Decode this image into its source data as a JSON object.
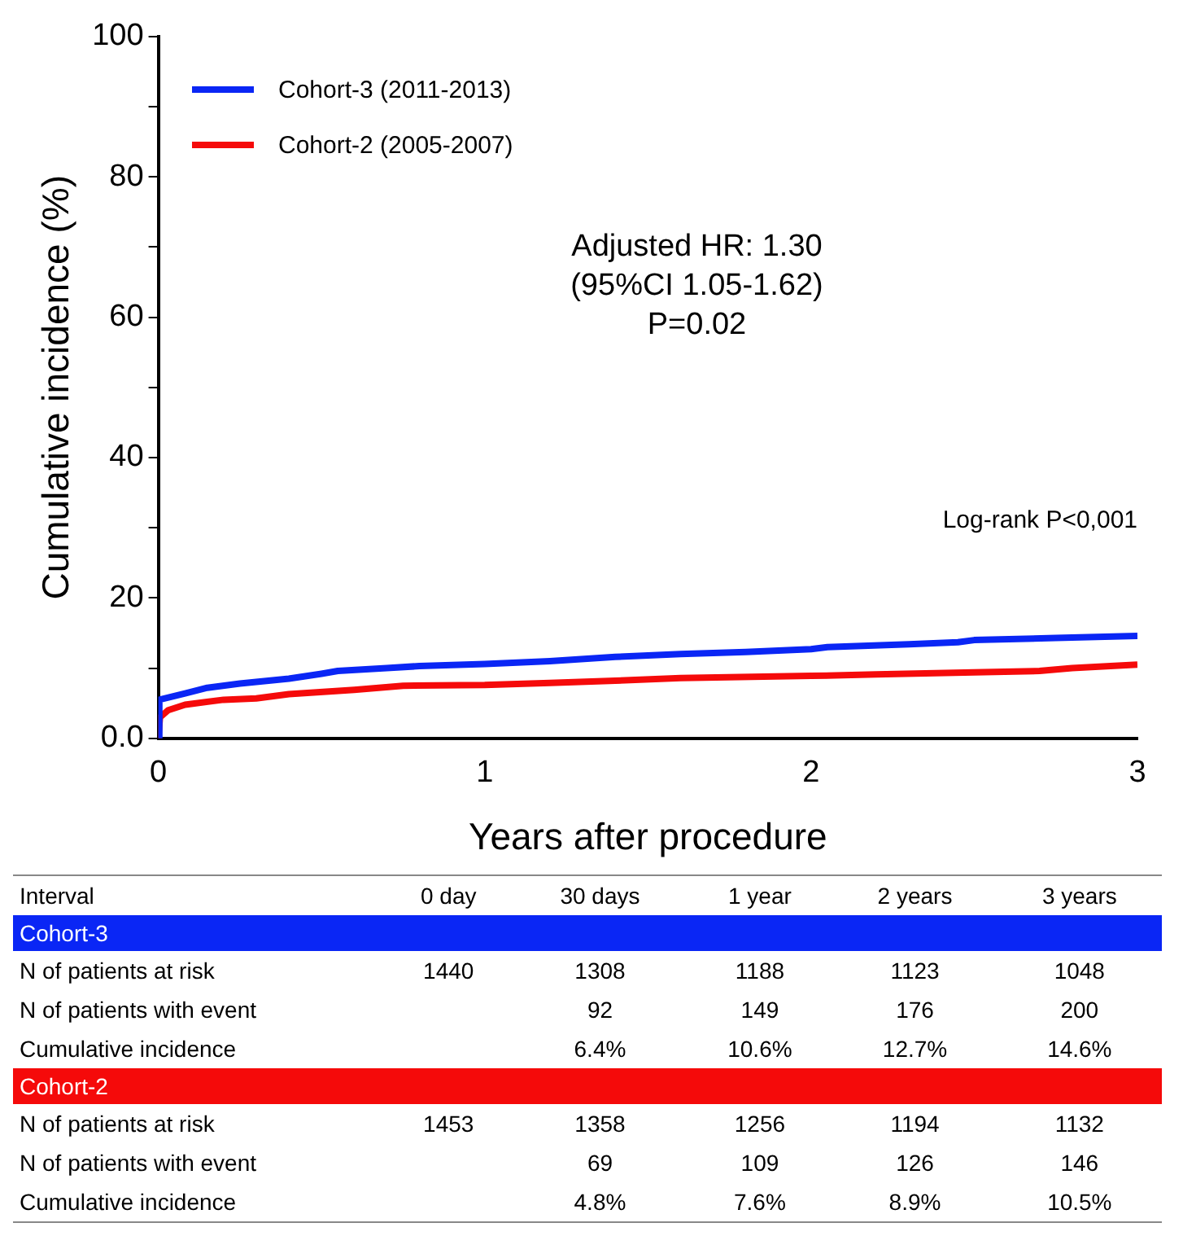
{
  "chart_data": {
    "type": "line",
    "xlabel": "Years after procedure",
    "ylabel": "Cumulative incidence (%)",
    "xlim": [
      0,
      3
    ],
    "xticks": [
      0,
      1,
      2,
      3
    ],
    "ylim": [
      0,
      100
    ],
    "yticks": [
      {
        "value": 0,
        "label": "0.0"
      },
      {
        "value": 10,
        "label": null
      },
      20,
      {
        "value": 30,
        "label": null
      },
      40,
      {
        "value": 50,
        "label": null
      },
      60,
      {
        "value": 70,
        "label": null
      },
      80,
      {
        "value": 90,
        "label": null
      },
      100
    ],
    "grid": false,
    "legend": "top left",
    "marker": "none",
    "line_style": "solid",
    "series": [
      {
        "name": "Cohort-3 (2011-2013)",
        "color": "#0a26f5",
        "x": [
          0,
          0.003,
          0.082,
          0.15,
          0.25,
          0.4,
          0.5,
          0.55,
          0.7,
          0.8,
          1,
          1.2,
          1.4,
          1.6,
          1.8,
          2,
          2.05,
          2.3,
          2.45,
          2.5,
          2.75,
          3
        ],
        "values": [
          0,
          5.5,
          6.4,
          7.2,
          7.8,
          8.5,
          9.2,
          9.6,
          10,
          10.3,
          10.6,
          11,
          11.6,
          12,
          12.3,
          12.7,
          13,
          13.4,
          13.7,
          14,
          14.3,
          14.6
        ]
      },
      {
        "name": "Cohort-2 (2005-2007)",
        "color": "#f50a0a",
        "x": [
          0,
          0.005,
          0.03,
          0.082,
          0.2,
          0.3,
          0.4,
          0.6,
          0.75,
          1,
          1.2,
          1.4,
          1.6,
          2,
          2.2,
          2.5,
          2.7,
          2.8,
          3
        ],
        "values": [
          0,
          3,
          4,
          4.8,
          5.5,
          5.7,
          6.3,
          6.9,
          7.5,
          7.6,
          7.9,
          8.2,
          8.6,
          8.9,
          9.1,
          9.4,
          9.6,
          10,
          10.5
        ]
      }
    ],
    "annotations": [
      "Adjusted HR: 1.30\n(95%CI 1.05-1.62)\nP=0.02",
      "Log-rank P<0,001",
      "Interval\t0 day\t30 days\t1 year\t2 years\t3 years",
      "Cohort-3",
      "N of patients at risk\t1440\t1308\t1188\t1123\t1048",
      "N of patients with event\t\t92\t149\t176\t200",
      "Cumulative incidence\t\t6.4%\t10.6%\t12.7%\t14.6%",
      "Cohort-2",
      "N of patients at risk\t1453\t1358\t1256\t1194\t1132",
      "N of patients with event\t\t69\t109\t126\t146",
      "Cumulative incidence\t\t4.8%\t7.6%\t8.9%\t10.5%"
    ]
  }
}
